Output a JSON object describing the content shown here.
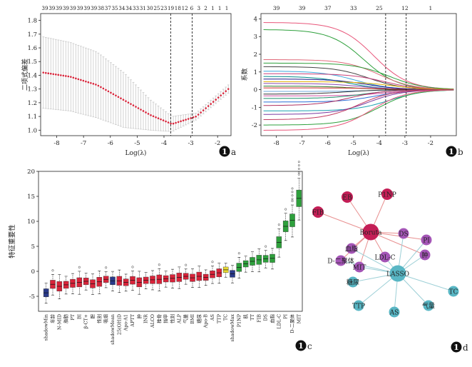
{
  "panel_labels": {
    "a": "a",
    "b": "b",
    "c": "c",
    "d": "d"
  },
  "colors": {
    "red": "#d8243a",
    "green": "#2ea03c",
    "yellow": "#e8d832",
    "navy": "#2a3a8a",
    "magenta": "#c41e56",
    "purple": "#a455b6",
    "teal": "#58b6c4",
    "edge_red": "#e89090",
    "edge_teal": "#9ccfd6"
  },
  "chart_data": [
    {
      "id": "a",
      "type": "line",
      "xlabel": "Log(λ)",
      "ylabel": "二项式偏差",
      "xlim": [
        -8.6,
        -1.5
      ],
      "ylim": [
        0.96,
        1.85
      ],
      "xticks": [
        -8,
        -7,
        -6,
        -5,
        -4,
        -3,
        -2
      ],
      "yticks": [
        1.0,
        1.1,
        1.2,
        1.3,
        1.4,
        1.5,
        1.6,
        1.7,
        1.8
      ],
      "top_ticks": [
        "39",
        "39",
        "39",
        "39",
        "39",
        "39",
        "39",
        "39",
        "38",
        "37",
        "35",
        "34",
        "34",
        "33",
        "31",
        "30",
        "25",
        "23",
        "19",
        "18",
        "12",
        "6",
        "3",
        "2",
        "1",
        "1",
        "1"
      ],
      "vlines": [
        -3.75,
        -2.95
      ],
      "series": [
        {
          "x": [
            -8.5,
            -7.5,
            -6.5,
            -5.5,
            -4.5,
            -3.7,
            -2.8,
            -1.6
          ],
          "y": [
            1.42,
            1.39,
            1.33,
            1.22,
            1.11,
            1.045,
            1.1,
            1.3
          ],
          "err": [
            0.26,
            0.25,
            0.24,
            0.2,
            0.11,
            0.055,
            0.025,
            0.03
          ]
        }
      ]
    },
    {
      "id": "b",
      "type": "line",
      "xlabel": "Log(λ)",
      "ylabel": "系数",
      "xlim": [
        -8.6,
        -1.0
      ],
      "ylim": [
        -2.6,
        4.3
      ],
      "xticks": [
        -8,
        -7,
        -6,
        -5,
        -4,
        -3,
        -2
      ],
      "yticks": [
        -2,
        -1,
        0,
        1,
        2,
        3,
        4
      ],
      "top_ticks": [
        "39",
        "39",
        "37",
        "33",
        "25",
        "12",
        "1"
      ],
      "top_tick_x": [
        -8,
        -7,
        -6,
        -5,
        -4,
        -3,
        -2
      ],
      "vlines": [
        -3.75,
        -2.95
      ],
      "series": [
        {
          "start": 3.8,
          "center": -4.2,
          "color": "#e8567a"
        },
        {
          "start": 3.4,
          "center": -4.6,
          "color": "#2ea03c"
        },
        {
          "start": 1.7,
          "center": -4.0,
          "color": "#e06a7a"
        },
        {
          "start": 1.5,
          "center": -3.6,
          "color": "#2ea03c"
        },
        {
          "start": 1.3,
          "center": -4.4,
          "color": "#444444"
        },
        {
          "start": 1.05,
          "center": -4.9,
          "color": "#3aa6dd"
        },
        {
          "start": 0.9,
          "center": -3.8,
          "color": "#c7417a"
        },
        {
          "start": 0.75,
          "center": -5.2,
          "color": "#008a8a"
        },
        {
          "start": 0.6,
          "center": -4.5,
          "color": "#1a1a8a"
        },
        {
          "start": 0.45,
          "center": -3.5,
          "color": "#e0b000"
        },
        {
          "start": 0.35,
          "center": -4.7,
          "color": "#884ab2"
        },
        {
          "start": 0.2,
          "center": -5.0,
          "color": "#2b7a2b"
        },
        {
          "start": 0.1,
          "center": -3.9,
          "color": "#cc2b2b"
        },
        {
          "start": -0.1,
          "center": -4.3,
          "color": "#6fa8dc"
        },
        {
          "start": -0.25,
          "center": -5.3,
          "color": "#333333"
        },
        {
          "start": -0.35,
          "center": -3.7,
          "color": "#d14fa3"
        },
        {
          "start": -0.5,
          "center": -4.6,
          "color": "#1f8f6b"
        },
        {
          "start": -0.7,
          "center": -4.1,
          "color": "#2a6dd6"
        },
        {
          "start": -0.9,
          "center": -5.1,
          "color": "#b03060"
        },
        {
          "start": -1.2,
          "center": -3.6,
          "color": "#19a0b0"
        },
        {
          "start": -1.4,
          "center": -4.4,
          "color": "#7a3aa0"
        },
        {
          "start": -1.7,
          "center": -4.8,
          "color": "#c23b60"
        },
        {
          "start": -2.0,
          "center": -4.0,
          "color": "#2ea03c"
        },
        {
          "start": -2.3,
          "center": -4.3,
          "color": "#e8567a"
        }
      ]
    },
    {
      "id": "c",
      "type": "box",
      "ylabel": "特征重要性",
      "ylim": [
        -8,
        20
      ],
      "yticks": [
        -5,
        0,
        5,
        10,
        15,
        20
      ],
      "categories": [
        "shadowMin",
        "年龄",
        "N-MID",
        "脂肪",
        "PT",
        "BI",
        "β-CT+",
        "胆",
        "性别",
        "吸烟",
        "shadowMean",
        "25(OH)D",
        "Apo-A1",
        "APTT",
        "肿",
        "INR",
        "ALCO",
        "椎骨",
        "指甲",
        "性别",
        "ALP",
        "气量",
        "BMI",
        "糖尿",
        "Apo-B",
        "AS",
        "TTP",
        "TC",
        "shadowMax",
        "P1NP",
        "肌",
        "TT",
        "FIB",
        "DS",
        "血脂",
        "LDL-C",
        "PI",
        "D-二聚体",
        "MIT"
      ],
      "medians": [
        -4.3,
        -2.6,
        -3.0,
        -2.7,
        -2.4,
        -2.2,
        -2.0,
        -2.5,
        -2.1,
        -1.6,
        -1.9,
        -1.9,
        -2.2,
        -1.8,
        -2.2,
        -1.8,
        -1.7,
        -1.6,
        -1.5,
        -1.4,
        -1.2,
        -1.0,
        -1.3,
        -1.0,
        -1.2,
        -0.6,
        -0.3,
        0.3,
        -0.5,
        0.8,
        1.5,
        2.0,
        2.3,
        2.5,
        2.6,
        5.8,
        9.0,
        10.2,
        14.6
      ],
      "groups": [
        "navy",
        "red",
        "red",
        "red",
        "red",
        "red",
        "red",
        "red",
        "red",
        "red",
        "navy",
        "red",
        "red",
        "red",
        "red",
        "red",
        "red",
        "red",
        "red",
        "red",
        "red",
        "red",
        "red",
        "red",
        "red",
        "red",
        "red",
        "yellow",
        "navy",
        "green",
        "green",
        "green",
        "green",
        "green",
        "green",
        "green",
        "green",
        "green",
        "green"
      ]
    },
    {
      "id": "d",
      "type": "network",
      "hubs": [
        "Boruta",
        "LASSO"
      ],
      "nodes": [
        {
          "label": "Boruta",
          "kind": "hub_red"
        },
        {
          "label": "LASSO",
          "kind": "hub_teal"
        },
        {
          "label": "EB",
          "kind": "red"
        },
        {
          "label": "P1NP",
          "kind": "red"
        },
        {
          "label": "FIB",
          "kind": "red"
        },
        {
          "label": "DS",
          "kind": "purple"
        },
        {
          "label": "PI",
          "kind": "purple"
        },
        {
          "label": "肿",
          "kind": "purple"
        },
        {
          "label": "血脂",
          "kind": "purple"
        },
        {
          "label": "D-二聚体",
          "kind": "purple"
        },
        {
          "label": "LDL-C",
          "kind": "purple"
        },
        {
          "label": "MIT",
          "kind": "purple"
        },
        {
          "label": "糖尿",
          "kind": "teal"
        },
        {
          "label": "TTP",
          "kind": "teal"
        },
        {
          "label": "AS",
          "kind": "teal"
        },
        {
          "label": "气量",
          "kind": "teal"
        },
        {
          "label": "TC",
          "kind": "teal"
        }
      ],
      "edges": [
        [
          "Boruta",
          "EB"
        ],
        [
          "Boruta",
          "P1NP"
        ],
        [
          "Boruta",
          "FIB"
        ],
        [
          "Boruta",
          "DS"
        ],
        [
          "Boruta",
          "PI"
        ],
        [
          "Boruta",
          "肿"
        ],
        [
          "Boruta",
          "血脂"
        ],
        [
          "Boruta",
          "D-二聚体"
        ],
        [
          "Boruta",
          "LDL-C"
        ],
        [
          "Boruta",
          "MIT"
        ],
        [
          "LASSO",
          "DS"
        ],
        [
          "LASSO",
          "PI"
        ],
        [
          "LASSO",
          "肿"
        ],
        [
          "LASSO",
          "血脂"
        ],
        [
          "LASSO",
          "D-二聚体"
        ],
        [
          "LASSO",
          "LDL-C"
        ],
        [
          "LASSO",
          "MIT"
        ],
        [
          "LASSO",
          "糖尿"
        ],
        [
          "LASSO",
          "TTP"
        ],
        [
          "LASSO",
          "AS"
        ],
        [
          "LASSO",
          "气量"
        ],
        [
          "LASSO",
          "TC"
        ]
      ]
    }
  ]
}
